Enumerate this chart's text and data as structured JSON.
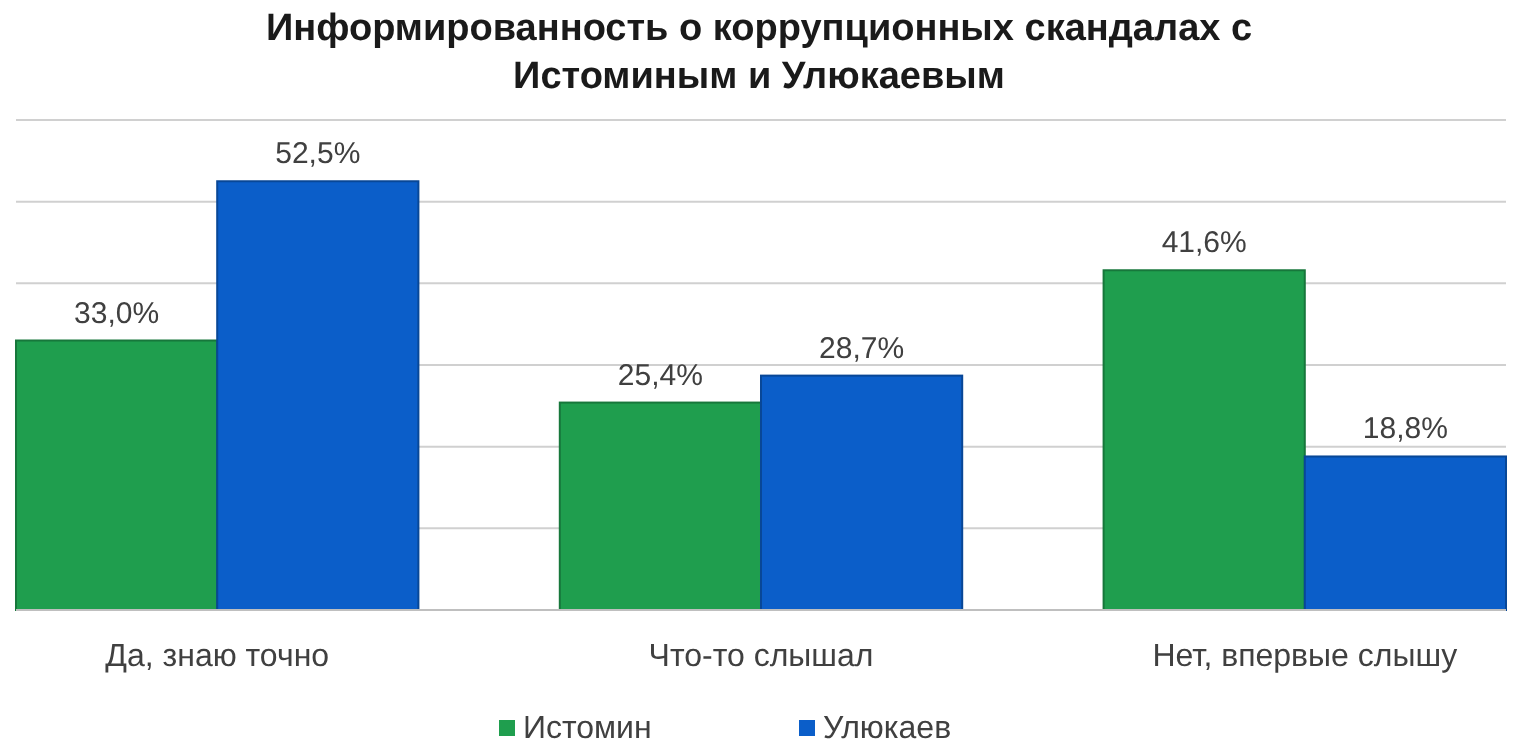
{
  "chart_data": {
    "type": "bar",
    "title": "Информированность о коррупционных скандалах с Истоминым и Улюкаевым",
    "categories": [
      "Да, знаю точно",
      "Что-то слышал",
      "Нет, впервые слышу"
    ],
    "series": [
      {
        "name": "Истомин",
        "color": "#1f9e4e",
        "values": [
          33.0,
          25.4,
          41.6
        ],
        "value_labels": [
          "33,0%",
          "25,4%",
          "41,6%"
        ]
      },
      {
        "name": "Улюкаев",
        "color": "#0b5ec9",
        "values": [
          52.5,
          28.7,
          18.8
        ],
        "value_labels": [
          "52,5%",
          "28,7%",
          "18,8%"
        ]
      }
    ],
    "ylim": [
      0,
      60
    ],
    "yticks": [
      {
        "value": 0,
        "label": null
      },
      {
        "value": 10,
        "label": null
      },
      {
        "value": 20,
        "label": null
      },
      {
        "value": 30,
        "label": null
      },
      {
        "value": 40,
        "label": null
      },
      {
        "value": 50,
        "label": null
      },
      {
        "value": 60,
        "label": null
      }
    ],
    "grid": "y",
    "legend": "bottom",
    "tick_labels": "x"
  }
}
